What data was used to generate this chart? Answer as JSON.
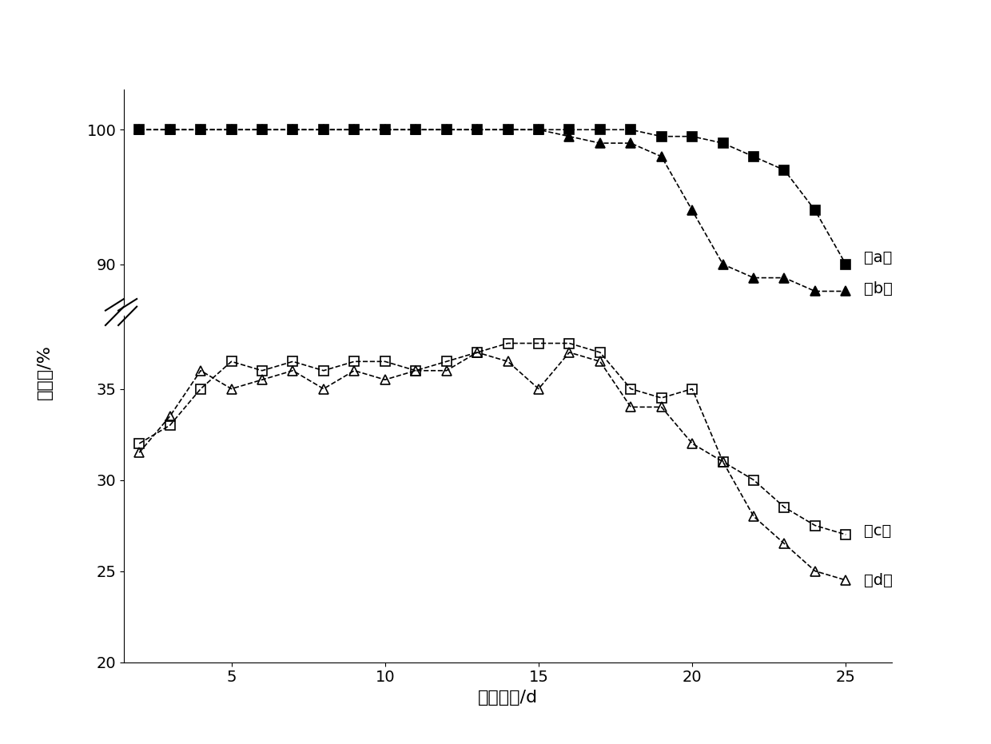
{
  "series_a": {
    "x": [
      2,
      3,
      4,
      5,
      6,
      7,
      8,
      9,
      10,
      11,
      12,
      13,
      14,
      15,
      16,
      17,
      18,
      19,
      20,
      21,
      22,
      23,
      24,
      25
    ],
    "y": [
      100,
      100,
      100,
      100,
      100,
      100,
      100,
      100,
      100,
      100,
      100,
      100,
      100,
      100,
      100,
      100,
      100,
      99.5,
      99.5,
      99,
      98,
      97,
      94,
      90
    ],
    "marker": "s",
    "linestyle": "--",
    "color": "#000000",
    "filled": true
  },
  "series_b": {
    "x": [
      2,
      3,
      4,
      5,
      6,
      7,
      8,
      9,
      10,
      11,
      12,
      13,
      14,
      15,
      16,
      17,
      18,
      19,
      20,
      21,
      22,
      23,
      24,
      25
    ],
    "y": [
      100,
      100,
      100,
      100,
      100,
      100,
      100,
      100,
      100,
      100,
      100,
      100,
      100,
      100,
      99.5,
      99,
      99,
      98,
      94,
      90,
      89,
      89,
      88,
      88
    ],
    "marker": "^",
    "linestyle": "--",
    "color": "#000000",
    "filled": true
  },
  "series_c": {
    "x": [
      2,
      3,
      4,
      5,
      6,
      7,
      8,
      9,
      10,
      11,
      12,
      13,
      14,
      15,
      16,
      17,
      18,
      19,
      20,
      21,
      22,
      23,
      24,
      25
    ],
    "y": [
      32,
      33,
      35,
      36.5,
      36,
      36.5,
      36,
      36.5,
      36.5,
      36,
      36.5,
      37,
      37.5,
      37.5,
      37.5,
      37,
      35,
      34.5,
      35,
      31,
      30,
      28.5,
      27.5,
      27
    ],
    "marker": "s",
    "linestyle": "--",
    "color": "#000000",
    "filled": false
  },
  "series_d": {
    "x": [
      2,
      3,
      4,
      5,
      6,
      7,
      8,
      9,
      10,
      11,
      12,
      13,
      14,
      15,
      16,
      17,
      18,
      19,
      20,
      21,
      22,
      23,
      24,
      25
    ],
    "y": [
      31.5,
      33.5,
      36,
      35,
      35.5,
      36,
      35,
      36,
      35.5,
      36,
      36,
      37,
      36.5,
      35,
      37,
      36.5,
      34,
      34,
      32,
      31,
      28,
      26.5,
      25,
      24.5
    ],
    "marker": "^",
    "linestyle": "--",
    "color": "#000000",
    "filled": false
  },
  "xlabel": "运转时间/d",
  "ylabel": "百分数/%",
  "xlim": [
    1.5,
    26.5
  ],
  "ylim_upper": [
    87,
    103
  ],
  "ylim_lower": [
    20,
    39
  ],
  "xticks": [
    5,
    10,
    15,
    20,
    25
  ],
  "yticks_upper": [
    90,
    100
  ],
  "yticks_lower": [
    20,
    25,
    30,
    35
  ],
  "background_color": "#ffffff",
  "font_size": 14,
  "marker_size": 8,
  "linewidth": 1.2
}
